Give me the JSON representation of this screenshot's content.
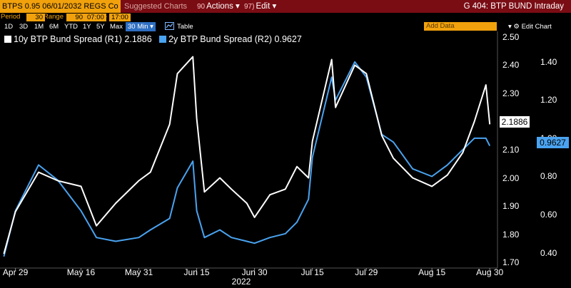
{
  "titlebar": {
    "security": "BTPS 0.95 06/01/2032 REGS Co",
    "suggested": "Suggested Charts",
    "actions_num": "90",
    "actions_label": "Actions",
    "edit_num": "97)",
    "edit_label": "Edit",
    "title": "G 404: BTP BUND Intraday"
  },
  "controls": {
    "period_label": "Period",
    "period_value": "30",
    "range_label": "Range",
    "range_value": "90",
    "time_start": "07:00",
    "time_end": "17:00"
  },
  "tabs": [
    "1D",
    "3D",
    "1M",
    "6M",
    "YTD",
    "1Y",
    "5Y",
    "Max"
  ],
  "interval": "30 Min",
  "table_label": "Table",
  "add_data": "Add Data",
  "edit_chart": "Edit Chart",
  "colors": {
    "series1": "#ffffff",
    "series2": "#4aa3f0",
    "accent": "#f1a10c",
    "titlebar": "#7a0c14"
  },
  "chart_data": {
    "type": "line",
    "x_tick_labels": [
      "Apr 29",
      "May 16",
      "May 31",
      "Jun 15",
      "Jun 30",
      "Jul 15",
      "Jul 29",
      "Aug 15",
      "Aug 30"
    ],
    "x_year_label": "2022",
    "series": [
      {
        "name": "10y BTP Bund Spread (R1)",
        "legend_value": "2.1886",
        "last": "2.1886",
        "axis": "R1",
        "color": "#ffffff",
        "x": [
          "2022-04-26",
          "2022-04-29",
          "2022-05-05",
          "2022-05-10",
          "2022-05-16",
          "2022-05-20",
          "2022-05-25",
          "2022-05-31",
          "2022-06-03",
          "2022-06-08",
          "2022-06-10",
          "2022-06-14",
          "2022-06-15",
          "2022-06-17",
          "2022-06-21",
          "2022-06-24",
          "2022-06-28",
          "2022-06-30",
          "2022-07-04",
          "2022-07-08",
          "2022-07-11",
          "2022-07-14",
          "2022-07-15",
          "2022-07-20",
          "2022-07-21",
          "2022-07-26",
          "2022-07-29",
          "2022-08-02",
          "2022-08-05",
          "2022-08-10",
          "2022-08-15",
          "2022-08-19",
          "2022-08-23",
          "2022-08-26",
          "2022-08-29",
          "2022-08-30"
        ],
        "y": [
          1.73,
          1.88,
          2.02,
          1.99,
          1.97,
          1.83,
          1.91,
          1.99,
          2.02,
          2.19,
          2.37,
          2.43,
          2.21,
          1.95,
          2.0,
          1.96,
          1.91,
          1.86,
          1.94,
          1.96,
          2.04,
          2.0,
          2.13,
          2.42,
          2.25,
          2.4,
          2.37,
          2.15,
          2.07,
          2.0,
          1.97,
          2.01,
          2.09,
          2.2,
          2.33,
          2.19
        ]
      },
      {
        "name": "2y BTP Bund Spread (R2)",
        "legend_value": "0.9627",
        "last": "0.9627",
        "axis": "R2",
        "color": "#4aa3f0",
        "x": [
          "2022-04-26",
          "2022-04-29",
          "2022-05-05",
          "2022-05-10",
          "2022-05-16",
          "2022-05-20",
          "2022-05-25",
          "2022-05-31",
          "2022-06-03",
          "2022-06-08",
          "2022-06-10",
          "2022-06-14",
          "2022-06-15",
          "2022-06-17",
          "2022-06-21",
          "2022-06-24",
          "2022-06-28",
          "2022-06-30",
          "2022-07-04",
          "2022-07-08",
          "2022-07-11",
          "2022-07-14",
          "2022-07-15",
          "2022-07-20",
          "2022-07-21",
          "2022-07-26",
          "2022-07-29",
          "2022-08-02",
          "2022-08-05",
          "2022-08-10",
          "2022-08-15",
          "2022-08-19",
          "2022-08-23",
          "2022-08-26",
          "2022-08-29",
          "2022-08-30"
        ],
        "y": [
          0.38,
          0.62,
          0.86,
          0.78,
          0.62,
          0.48,
          0.46,
          0.48,
          0.52,
          0.58,
          0.74,
          0.88,
          0.62,
          0.48,
          0.52,
          0.48,
          0.46,
          0.45,
          0.48,
          0.5,
          0.56,
          0.68,
          0.9,
          1.32,
          1.2,
          1.4,
          1.32,
          1.02,
          0.98,
          0.84,
          0.8,
          0.86,
          0.94,
          1.0,
          1.0,
          0.96
        ]
      }
    ],
    "y_left_ticks": [
      "2.50",
      "2.40",
      "2.30",
      "2.20",
      "2.10",
      "2.00",
      "1.90",
      "1.80",
      "1.70"
    ],
    "y_right_ticks": [
      "1.40",
      "1.20",
      "1.00",
      "0.80",
      "0.60",
      "0.40"
    ],
    "ylim_r1": [
      1.68,
      2.52
    ],
    "ylim_r2": [
      0.32,
      1.56
    ]
  }
}
